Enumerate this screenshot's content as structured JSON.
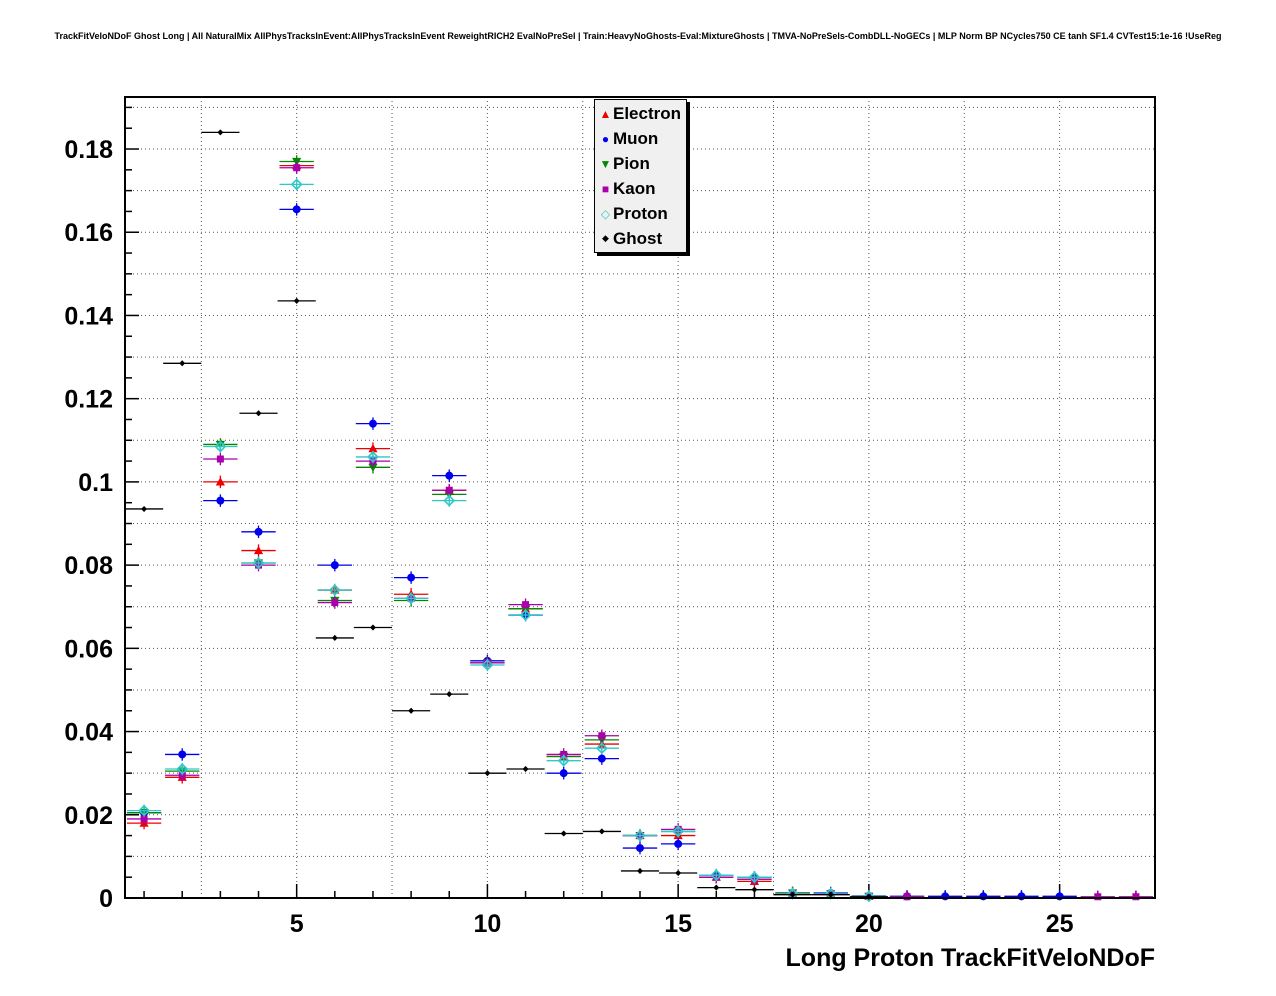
{
  "header": {
    "title": "TrackFitVeloNDoF Ghost Long | All NaturalMix AllPhysTracksInEvent:AllPhysTracksInEvent ReweightRICH2 EvalNoPreSel | Train:HeavyNoGhosts-Eval:MixtureGhosts | TMVA-NoPreSels-CombDLL-NoGECs | MLP Norm BP NCycles750 CE tanh SF1.4 CVTest15:1e-16 !UseReg"
  },
  "chart_data": {
    "type": "scatter",
    "title": "TrackFitVeloNDoF Ghost Long",
    "xlabel": "Long Proton TrackFitVeloNDoF",
    "ylabel": "",
    "xlim": [
      0.5,
      27.5
    ],
    "ylim": [
      0,
      0.1925
    ],
    "grid": {
      "on": true,
      "style": "dotted",
      "x_step": 2.5,
      "y_step": 0.01
    },
    "x_ticks": {
      "values": [
        5,
        10,
        15,
        20,
        25
      ],
      "labels": [
        "5",
        "10",
        "15",
        "20",
        "25"
      ]
    },
    "y_ticks": {
      "values": [
        0,
        0.02,
        0.04,
        0.06,
        0.08,
        0.1,
        0.12,
        0.14,
        0.16,
        0.18
      ],
      "labels": [
        "0",
        "0.02",
        "0.04",
        "0.06",
        "0.08",
        "0.1",
        "0.12",
        "0.14",
        "0.16",
        "0.18"
      ]
    },
    "legend_position": "top-center",
    "x": [
      1,
      2,
      3,
      4,
      5,
      6,
      7,
      8,
      9,
      10,
      11,
      12,
      13,
      14,
      15,
      16,
      17,
      18,
      19,
      20,
      21,
      22,
      23,
      24,
      25,
      26,
      27
    ],
    "series": [
      {
        "name": "Electron",
        "color": "#ee0000",
        "marker": "triangle-up",
        "xerr": 0.45,
        "yerr": 0.0015,
        "values": [
          0.018,
          0.029,
          0.1,
          0.0835,
          0.176,
          0.074,
          0.108,
          0.073,
          0.098,
          0.0565,
          0.0695,
          0.034,
          0.037,
          0.015,
          0.015,
          0.005,
          0.004,
          0.0012,
          0.001,
          0.0004,
          null,
          null,
          null,
          null,
          null,
          null,
          null
        ]
      },
      {
        "name": "Muon",
        "color": "#0000ee",
        "marker": "circle",
        "xerr": 0.45,
        "yerr": 0.0015,
        "values": [
          0.0205,
          0.0345,
          0.0955,
          0.088,
          0.1655,
          0.08,
          0.114,
          0.077,
          0.1015,
          0.057,
          0.068,
          0.03,
          0.0335,
          0.012,
          0.013,
          0.0055,
          0.005,
          0.0012,
          0.0012,
          0.0005,
          0.0004,
          0.0004,
          0.0004,
          0.0004,
          0.0004,
          null,
          null
        ]
      },
      {
        "name": "Pion",
        "color": "#008800",
        "marker": "triangle-down",
        "xerr": 0.45,
        "yerr": 0.0015,
        "values": [
          0.0205,
          0.0305,
          0.109,
          0.0805,
          0.177,
          0.0715,
          0.1035,
          0.0715,
          0.097,
          0.0565,
          0.0695,
          0.034,
          0.038,
          0.015,
          0.016,
          0.005,
          0.0045,
          0.0012,
          0.001,
          0.0004,
          null,
          null,
          null,
          null,
          null,
          null,
          null
        ]
      },
      {
        "name": "Kaon",
        "color": "#aa00aa",
        "marker": "square",
        "xerr": 0.45,
        "yerr": 0.0015,
        "values": [
          0.019,
          0.0295,
          0.1055,
          0.08,
          0.1755,
          0.071,
          0.105,
          0.072,
          0.098,
          0.0565,
          0.0705,
          0.0345,
          0.039,
          0.015,
          0.0165,
          0.005,
          0.0045,
          0.001,
          0.001,
          0.0004,
          0.0003,
          null,
          null,
          null,
          null,
          0.0003,
          0.0003
        ]
      },
      {
        "name": "Proton",
        "color": "#2fc8c8",
        "marker": "diamond-open",
        "xerr": 0.45,
        "yerr": 0.0015,
        "values": [
          0.021,
          0.031,
          0.1085,
          0.0805,
          0.1715,
          0.074,
          0.106,
          0.072,
          0.0955,
          0.056,
          0.068,
          0.033,
          0.036,
          0.015,
          0.016,
          0.0055,
          0.005,
          0.001,
          0.001,
          0.0004,
          null,
          null,
          null,
          null,
          null,
          null,
          null
        ]
      },
      {
        "name": "Ghost",
        "color": "#000000",
        "marker": "small-diamond",
        "xerr": 0.5,
        "yerr": 0.0006,
        "values": [
          0.0935,
          0.1285,
          0.184,
          0.1165,
          0.1435,
          0.0625,
          0.065,
          0.045,
          0.049,
          0.03,
          0.031,
          0.0155,
          0.016,
          0.0065,
          0.006,
          0.0025,
          0.002,
          0.0008,
          0.0008,
          0.0003,
          null,
          null,
          null,
          null,
          null,
          null,
          null
        ]
      }
    ]
  }
}
